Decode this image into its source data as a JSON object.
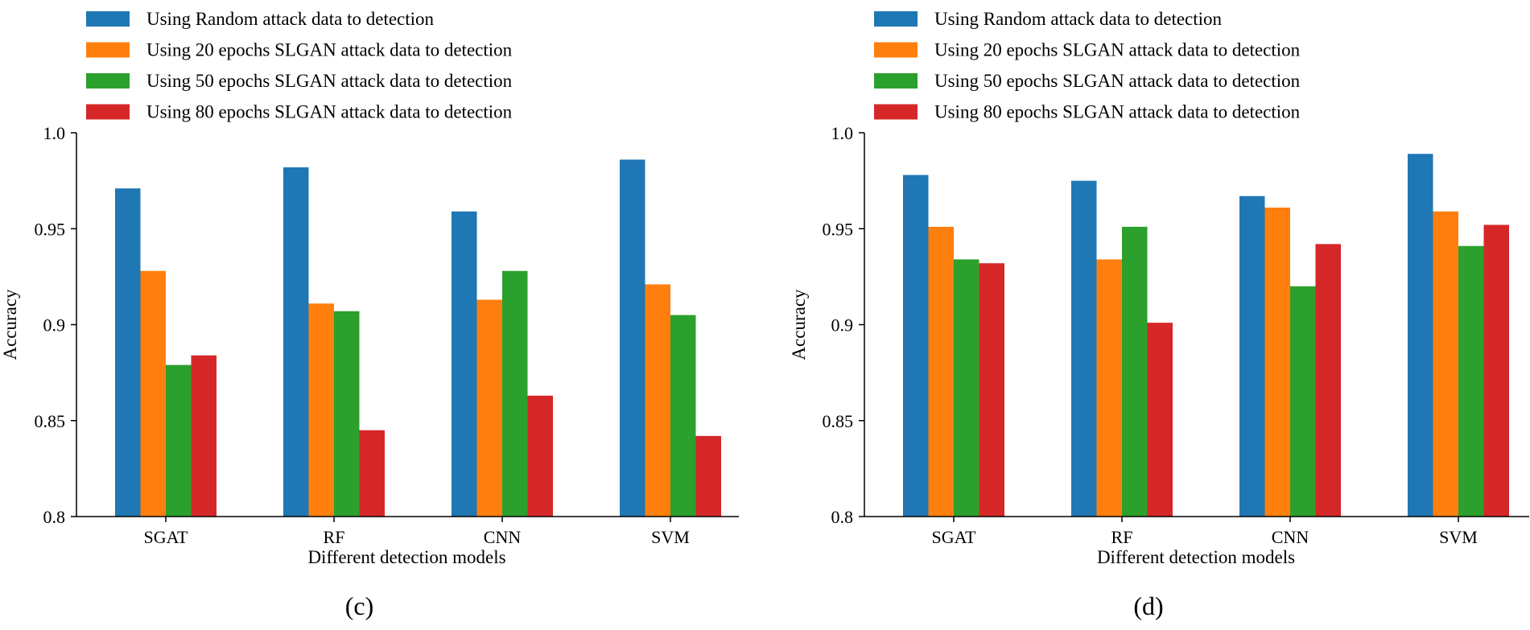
{
  "chart_data": [
    {
      "type": "bar",
      "panel_label": "(c)",
      "categories": [
        "SGAT",
        "RF",
        "CNN",
        "SVM"
      ],
      "series": [
        {
          "name": "Using Random attack data to detection",
          "color": "#1f77b4",
          "values": [
            0.971,
            0.982,
            0.959,
            0.986
          ]
        },
        {
          "name": "Using 20 epochs SLGAN attack data to detection",
          "color": "#ff7f0e",
          "values": [
            0.928,
            0.911,
            0.913,
            0.921
          ]
        },
        {
          "name": "Using 50 epochs SLGAN attack data to detection",
          "color": "#2ca02c",
          "values": [
            0.879,
            0.907,
            0.928,
            0.905
          ]
        },
        {
          "name": "Using 80 epochs SLGAN attack data to detection",
          "color": "#d62728",
          "values": [
            0.884,
            0.845,
            0.863,
            0.842
          ]
        }
      ],
      "xlabel": "Different detection models",
      "ylabel": "Accuracy",
      "ylim": [
        0.8,
        1.0
      ],
      "yticks": [
        0.8,
        0.85,
        0.9,
        0.95,
        1.0
      ],
      "ytick_labels": [
        "0.8",
        "0.85",
        "0.9",
        "0.95",
        "1.0"
      ],
      "legend_position": "top-left"
    },
    {
      "type": "bar",
      "panel_label": "(d)",
      "categories": [
        "SGAT",
        "RF",
        "CNN",
        "SVM"
      ],
      "series": [
        {
          "name": "Using Random attack data to detection",
          "color": "#1f77b4",
          "values": [
            0.978,
            0.975,
            0.967,
            0.989
          ]
        },
        {
          "name": "Using 20 epochs SLGAN attack data to detection",
          "color": "#ff7f0e",
          "values": [
            0.951,
            0.934,
            0.961,
            0.959
          ]
        },
        {
          "name": "Using 50 epochs SLGAN attack data to detection",
          "color": "#2ca02c",
          "values": [
            0.934,
            0.951,
            0.92,
            0.941
          ]
        },
        {
          "name": "Using 80 epochs SLGAN attack data to detection",
          "color": "#d62728",
          "values": [
            0.932,
            0.901,
            0.942,
            0.952
          ]
        }
      ],
      "xlabel": "Different detection models",
      "ylabel": "Accuracy",
      "ylim": [
        0.8,
        1.0
      ],
      "yticks": [
        0.8,
        0.85,
        0.9,
        0.95,
        1.0
      ],
      "ytick_labels": [
        "0.8",
        "0.85",
        "0.9",
        "0.95",
        "1.0"
      ],
      "legend_position": "top-left"
    }
  ]
}
